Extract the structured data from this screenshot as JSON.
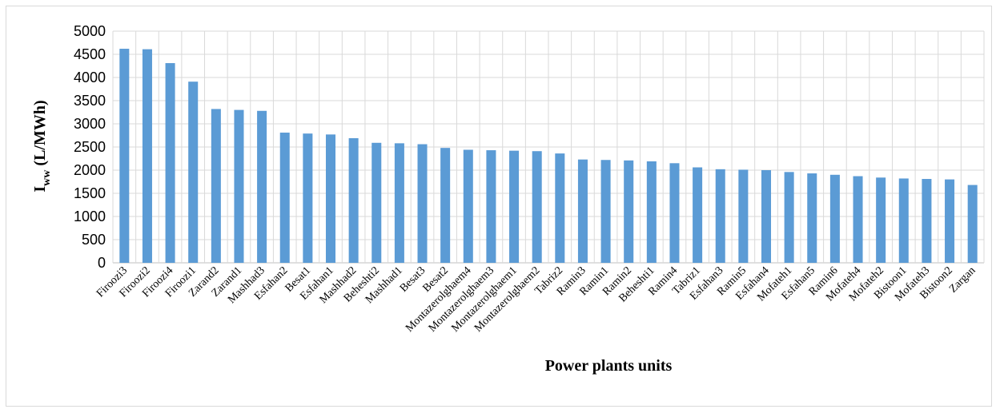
{
  "chart_data": {
    "type": "bar",
    "title": "",
    "xlabel": "Power plants units",
    "ylabel_main": "I",
    "ylabel_sub": "ww",
    "ylabel_unit": " (L/MWh)",
    "ylim": [
      0,
      5000
    ],
    "yticks": [
      0,
      500,
      1000,
      1500,
      2000,
      2500,
      3000,
      3500,
      4000,
      4500,
      5000
    ],
    "grid": true,
    "legend": "none",
    "bar_color": "#5b9bd5",
    "categories": [
      "Firoozi3",
      "Firoozi2",
      "Firoozi4",
      "Firoozi1",
      "Zarand2",
      "Zarand1",
      "Mashhad3",
      "Esfahan2",
      "Besat1",
      "Esfahan1",
      "Mashhad2",
      "Beheshti2",
      "Mashhad1",
      "Besat3",
      "Besat2",
      "Montazerolghaem4",
      "Montazerolghaem3",
      "Montazerolghaem1",
      "Montazerolghaem2",
      "Tabriz2",
      "Ramin3",
      "Ramin1",
      "Ramin2",
      "Beheshti1",
      "Ramin4",
      "Tabriz1",
      "Esfahan3",
      "Ramin5",
      "Esfahan4",
      "Mofateh1",
      "Esfahan5",
      "Ramin6",
      "Mofateh4",
      "Mofateh2",
      "Bistoon1",
      "Mofateh3",
      "Bistoon2",
      "Zargan"
    ],
    "values": [
      4620,
      4610,
      4310,
      3910,
      3320,
      3300,
      3280,
      2810,
      2790,
      2770,
      2690,
      2590,
      2580,
      2560,
      2480,
      2440,
      2430,
      2420,
      2410,
      2360,
      2230,
      2220,
      2210,
      2190,
      2150,
      2060,
      2020,
      2010,
      2000,
      1960,
      1930,
      1900,
      1870,
      1840,
      1820,
      1810,
      1800,
      1680
    ]
  }
}
